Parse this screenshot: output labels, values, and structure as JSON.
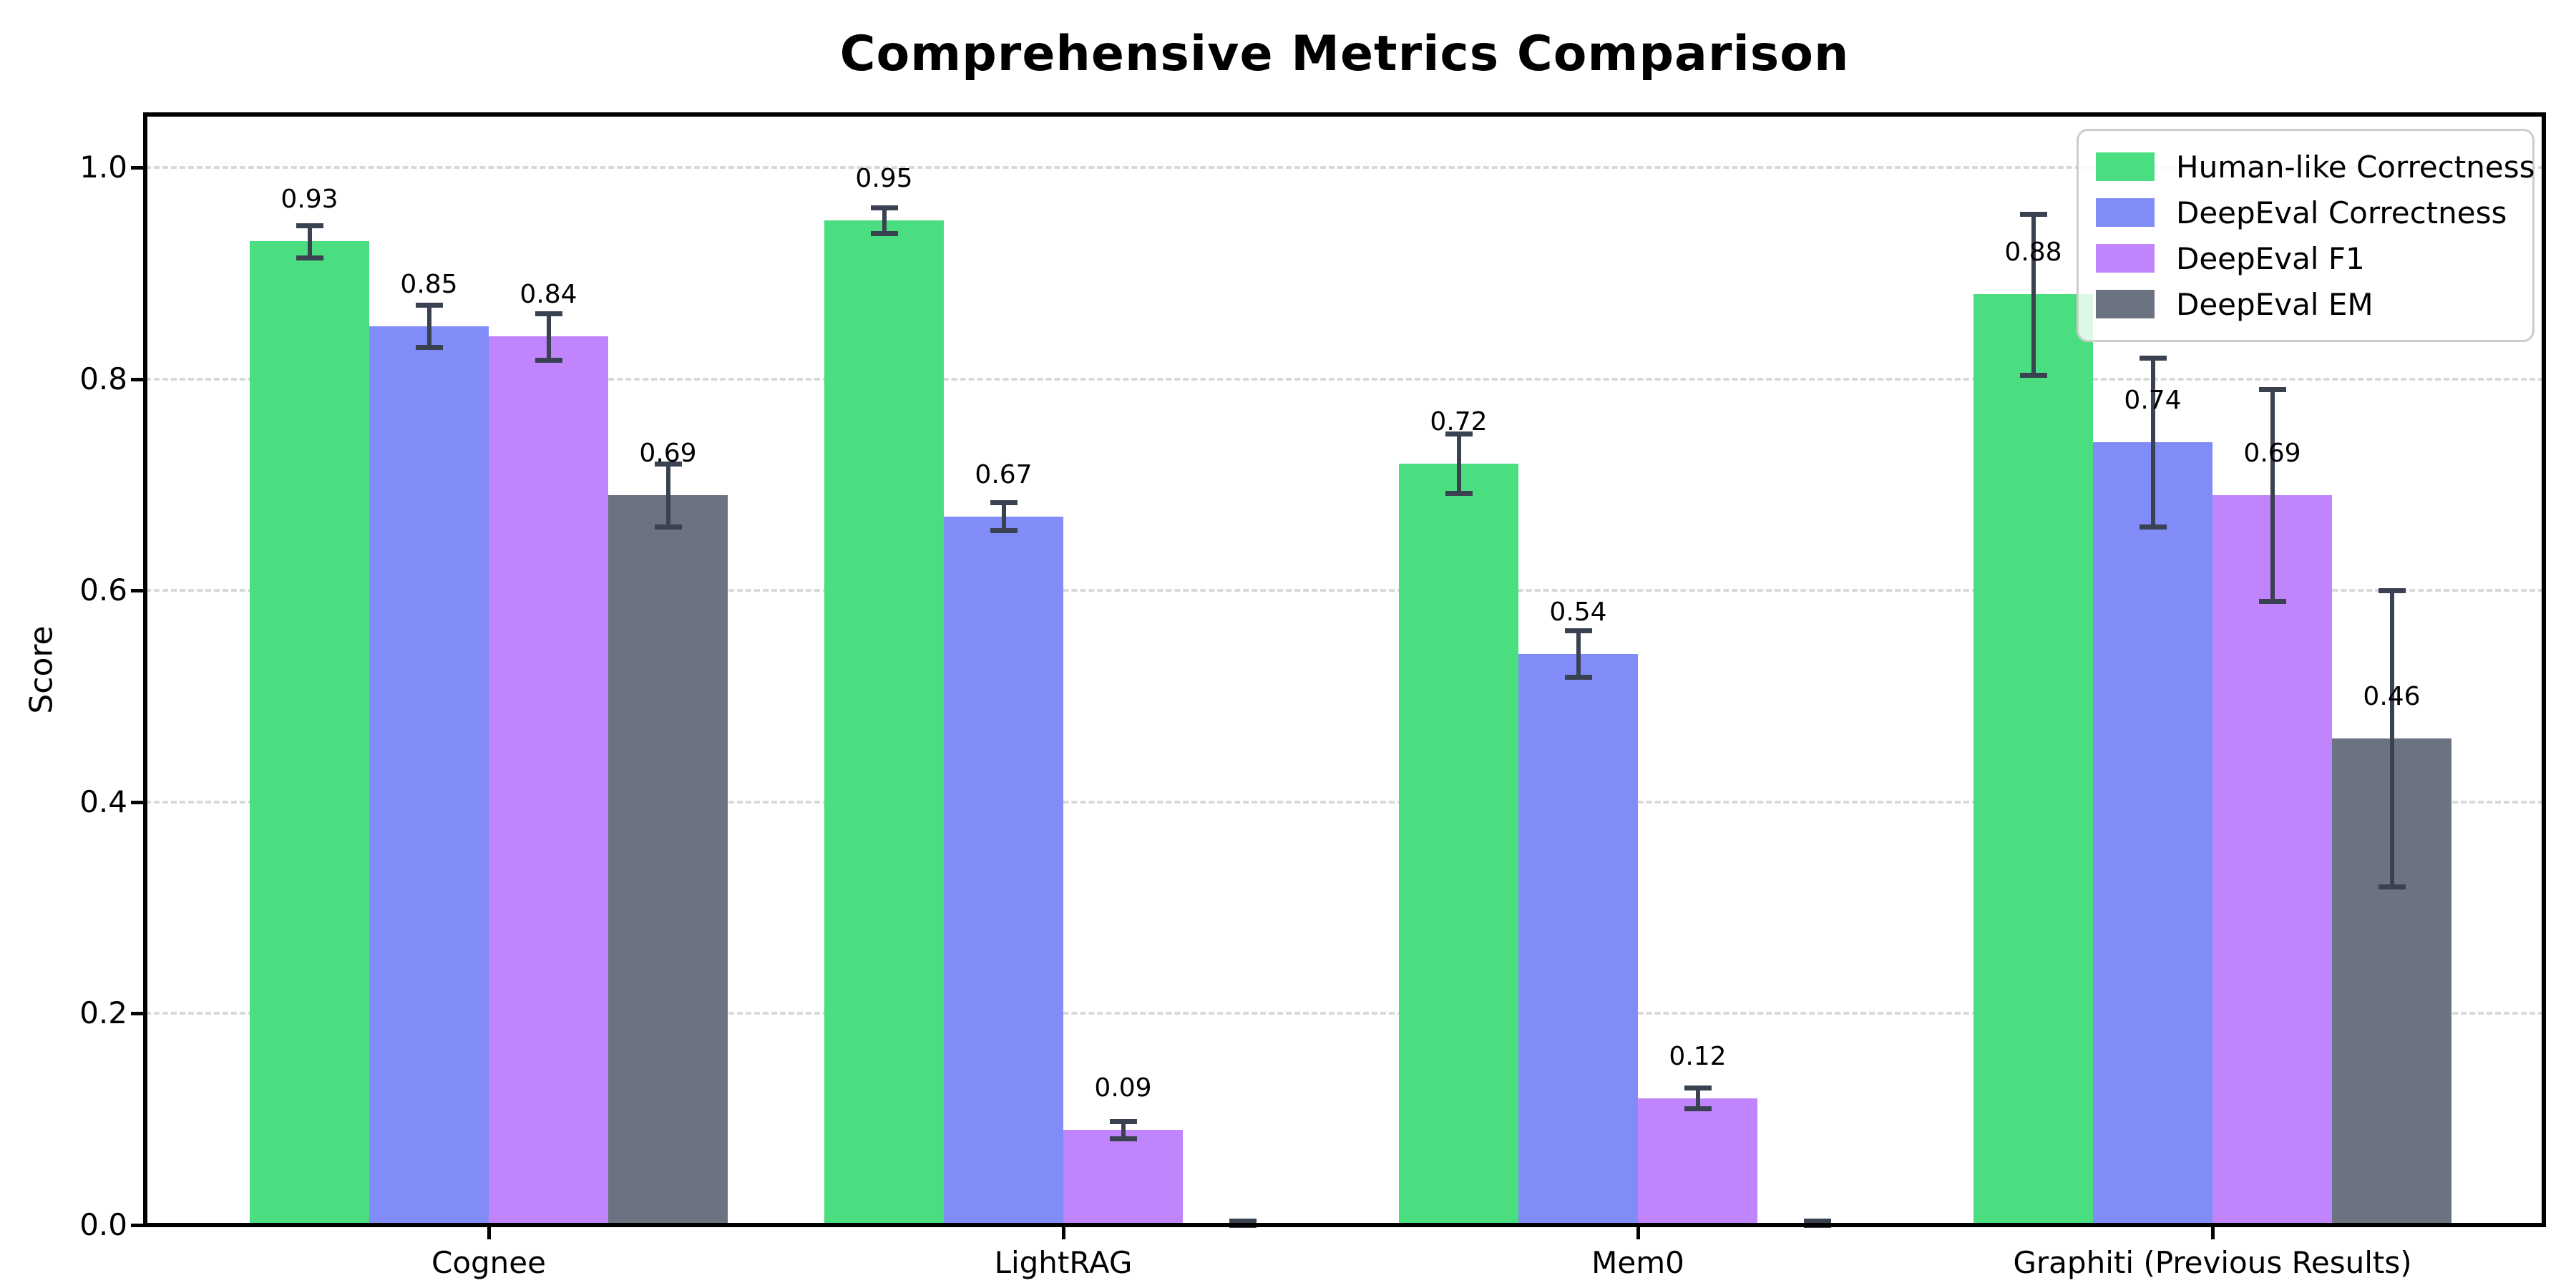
{
  "title": "Comprehensive Metrics Comparison",
  "ylabel": "Score",
  "chart_data": {
    "type": "bar",
    "title": "Comprehensive Metrics Comparison",
    "xlabel": "",
    "ylabel": "Score",
    "categories": [
      "Cognee",
      "LightRAG",
      "Mem0",
      "Graphiti (Previous Results)"
    ],
    "series": [
      {
        "name": "Human-like Correctness",
        "color": "#4ade80",
        "values": [
          0.93,
          0.95,
          0.72,
          0.88
        ],
        "errors": [
          0.015,
          0.012,
          0.028,
          0.076
        ],
        "labels": [
          "0.93",
          "0.95",
          "0.72",
          "0.88"
        ]
      },
      {
        "name": "DeepEval Correctness",
        "color": "#818cf8",
        "values": [
          0.85,
          0.67,
          0.54,
          0.74
        ],
        "errors": [
          0.02,
          0.013,
          0.022,
          0.08
        ],
        "labels": [
          "0.85",
          "0.67",
          "0.54",
          "0.74"
        ]
      },
      {
        "name": "DeepEval F1",
        "color": "#c084fc",
        "values": [
          0.84,
          0.09,
          0.12,
          0.69
        ],
        "errors": [
          0.022,
          0.008,
          0.01,
          0.1
        ],
        "labels": [
          "0.84",
          "0.09",
          "0.12",
          "0.69"
        ]
      },
      {
        "name": "DeepEval EM",
        "color": "#6b7280",
        "values": [
          0.69,
          0.0,
          0.0,
          0.46
        ],
        "errors": [
          0.03,
          0.004,
          0.004,
          0.14
        ],
        "labels": [
          "0.69",
          "",
          "",
          "0.46"
        ]
      }
    ],
    "ytick_labels": [
      "0.0",
      "0.2",
      "0.4",
      "0.6",
      "0.8",
      "1.0"
    ],
    "yticks": [
      0.0,
      0.2,
      0.4,
      0.6,
      0.8,
      1.0
    ],
    "ylim": [
      0,
      1.05
    ],
    "grid": "horizontal-dashed",
    "legend_position": "upper right",
    "error_bar_color": "#3a4252",
    "gridline_color": "#d9d9d9",
    "axis_color": "#000000"
  }
}
